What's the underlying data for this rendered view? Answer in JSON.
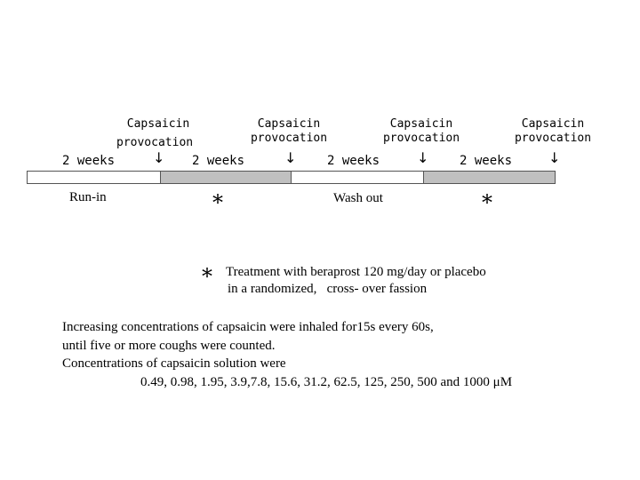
{
  "provocations": [
    {
      "line1": "Capsaicin",
      "line2": "provocation"
    },
    {
      "line1": "Capsaicin",
      "line2": "provocation"
    },
    {
      "line1": "Capsaicin",
      "line2": "provocation"
    },
    {
      "line1": "Capsaicin",
      "line2": "provocation"
    }
  ],
  "arrow": "↓",
  "durations": [
    "2 weeks",
    "2 weeks",
    "2 weeks",
    "2 weeks"
  ],
  "phases": {
    "run_in": "Run-in",
    "star1": "*",
    "wash_out": "Wash out",
    "star2": "*"
  },
  "colors": {
    "white_segment": "#ffffff",
    "gray_segment": "#c0c0c0"
  },
  "footnote": {
    "star": "*",
    "line1": "Treatment with beraprost 120 mg/day or placebo",
    "line2": "in a randomized,   cross- over fassion"
  },
  "notes": {
    "line1": "Increasing concentrations of capsaicin were inhaled for15s every 60s,",
    "line2": "until five or more coughs were counted.",
    "line3": "Concentrations of capsaicin solution were",
    "line4": "0.49, 0.98, 1.95, 3.9,7.8, 15.6, 31.2, 62.5, 125, 250, 500 and 1000 μM"
  }
}
